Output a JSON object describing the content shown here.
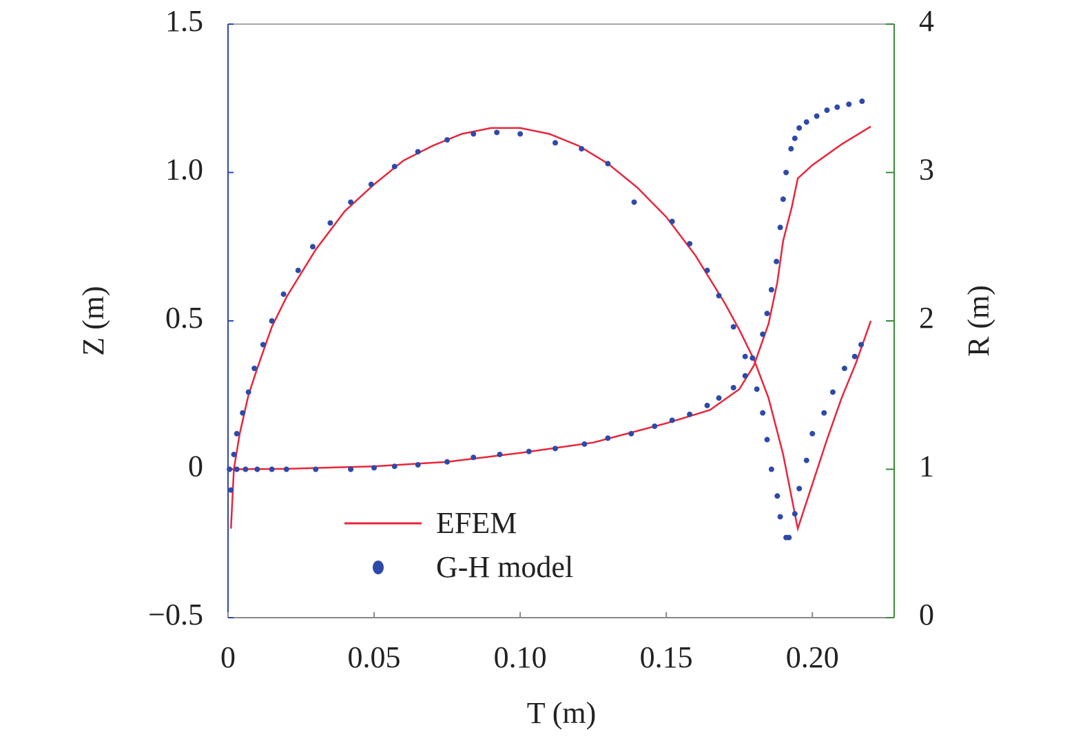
{
  "chart_data": {
    "type": "line",
    "xlabel": "T (m)",
    "ylabel": "Z (m)",
    "y2label": "R (m)",
    "xlim": [
      0,
      0.228
    ],
    "ylim": [
      -0.5,
      1.5
    ],
    "y2lim": [
      0,
      4
    ],
    "xticks": [
      0,
      0.05,
      {
        "value": 0.1,
        "label": "0.10"
      },
      0.15,
      {
        "value": 0.2,
        "label": "0.20"
      }
    ],
    "yticks": [
      {
        "value": -0.5,
        "label": "−0.5"
      },
      0,
      0.5,
      {
        "value": 1,
        "label": "1.0"
      },
      1.5
    ],
    "y2ticks": [
      0,
      1,
      2,
      3,
      4
    ],
    "y_axis_color": "#2c47a6",
    "y2_axis_color": "#3a8a3a",
    "series": [
      {
        "name": "EFEM",
        "color": "#e8253a",
        "style": "line",
        "curves": [
          {
            "axis": "y",
            "x": [
              0.001,
              0.002,
              0.004,
              0.007,
              0.01,
              0.015,
              0.02,
              0.03,
              0.04,
              0.05,
              0.06,
              0.07,
              0.08,
              0.09,
              0.1,
              0.11,
              0.12,
              0.13,
              0.14,
              0.15,
              0.16,
              0.17,
              0.175,
              0.18,
              0.185,
              0.19,
              0.193,
              0.195,
              0.2,
              0.205,
              0.21,
              0.215,
              0.22
            ],
            "values": [
              -0.2,
              0.0,
              0.12,
              0.25,
              0.34,
              0.48,
              0.58,
              0.74,
              0.87,
              0.96,
              1.04,
              1.09,
              1.13,
              1.15,
              1.15,
              1.13,
              1.09,
              1.03,
              0.95,
              0.85,
              0.72,
              0.56,
              0.47,
              0.37,
              0.24,
              0.05,
              -0.1,
              -0.2,
              -0.05,
              0.1,
              0.24,
              0.36,
              0.5
            ]
          },
          {
            "axis": "y2",
            "x": [
              0.001,
              0.02,
              0.05,
              0.075,
              0.1,
              0.125,
              0.15,
              0.165,
              0.175,
              0.18,
              0.185,
              0.188,
              0.19,
              0.193,
              0.195,
              0.2,
              0.21,
              0.22
            ],
            "values": [
              1.0,
              1.003,
              1.02,
              1.05,
              1.11,
              1.18,
              1.31,
              1.4,
              1.54,
              1.7,
              1.98,
              2.26,
              2.54,
              2.77,
              2.96,
              3.05,
              3.19,
              3.31
            ]
          }
        ]
      },
      {
        "name": "G-H model",
        "color": "#2e4aa8",
        "style": "dots",
        "curves": [
          {
            "axis": "y",
            "x": [
              0.001,
              0.002,
              0.003,
              0.005,
              0.007,
              0.009,
              0.012,
              0.015,
              0.019,
              0.024,
              0.029,
              0.035,
              0.042,
              0.049,
              0.057,
              0.065,
              0.075,
              0.084,
              0.092,
              0.1,
              0.112,
              0.121,
              0.13,
              0.139,
              0.152,
              0.158,
              0.164,
              0.168,
              0.173,
              0.177,
              0.181,
              0.183,
              0.1845,
              0.186,
              0.188,
              0.189,
              0.191,
              0.192,
              0.194,
              0.1955,
              0.198,
              0.2,
              0.204,
              0.207,
              0.211,
              0.2145,
              0.2167
            ],
            "values": [
              -0.07,
              0.05,
              0.12,
              0.19,
              0.26,
              0.34,
              0.42,
              0.5,
              0.59,
              0.67,
              0.75,
              0.83,
              0.9,
              0.96,
              1.02,
              1.07,
              1.11,
              1.13,
              1.135,
              1.13,
              1.1,
              1.08,
              1.03,
              0.9,
              0.835,
              0.76,
              0.67,
              0.585,
              0.48,
              0.38,
              0.27,
              0.19,
              0.1,
              0.0,
              -0.09,
              -0.16,
              -0.23,
              -0.23,
              -0.15,
              -0.065,
              0.03,
              0.12,
              0.19,
              0.26,
              0.34,
              0.38,
              0.42
            ]
          },
          {
            "axis": "y2",
            "x": [
              0.0005,
              0.003,
              0.006,
              0.01,
              0.015,
              0.02,
              0.03,
              0.042,
              0.05,
              0.057,
              0.065,
              0.075,
              0.084,
              0.093,
              0.103,
              0.112,
              0.122,
              0.13,
              0.138,
              0.146,
              0.152,
              0.158,
              0.164,
              0.168,
              0.173,
              0.177,
              0.1795,
              0.183,
              0.1845,
              0.186,
              0.1877,
              0.189,
              0.19,
              0.191,
              0.1927,
              0.194,
              0.1955,
              0.198,
              0.2015,
              0.205,
              0.2085,
              0.2125,
              0.217
            ],
            "values": [
              1.0,
              1.0,
              1.0,
              1.0,
              1.0,
              1.0,
              1.0,
              1.0,
              1.01,
              1.02,
              1.03,
              1.05,
              1.08,
              1.1,
              1.12,
              1.14,
              1.17,
              1.21,
              1.24,
              1.29,
              1.33,
              1.37,
              1.43,
              1.48,
              1.55,
              1.63,
              1.75,
              1.91,
              2.05,
              2.21,
              2.4,
              2.63,
              2.82,
              3.0,
              3.16,
              3.23,
              3.3,
              3.34,
              3.38,
              3.42,
              3.44,
              3.46,
              3.48
            ]
          }
        ]
      }
    ]
  }
}
